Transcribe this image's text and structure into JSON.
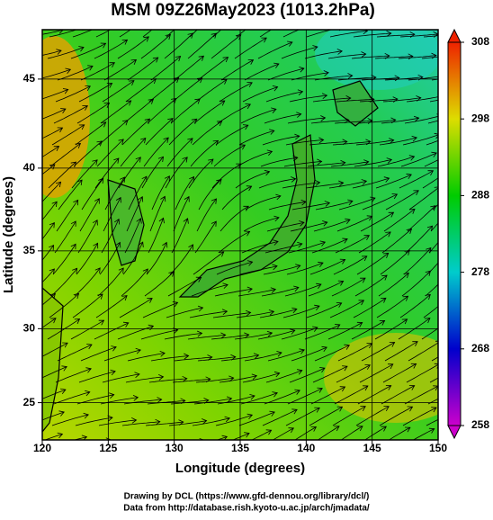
{
  "chart_data": {
    "type": "map",
    "title": "MSM 09Z26May2023 (1013.2hPa)",
    "x_label": "Longitude (degrees)",
    "y_label": "Latitude  (degrees)",
    "xlim": [
      120,
      150
    ],
    "ylim": [
      22.4,
      47.6
    ],
    "projection": "mercator",
    "xticks": [
      120,
      125,
      130,
      135,
      140,
      145,
      150
    ],
    "yticks": [
      25,
      30,
      35,
      40,
      45
    ],
    "grid": true,
    "colorbar": {
      "lim": [
        258,
        308
      ],
      "ticks": [
        258,
        268,
        278,
        288,
        298,
        308
      ]
    }
  },
  "credits": [
    "Drawing by DCL (https://www.gfd-dennou.org/library/dcl/)",
    "Data from http://database.rish.kyoto-u.ac.jp/arch/jmadata/"
  ]
}
